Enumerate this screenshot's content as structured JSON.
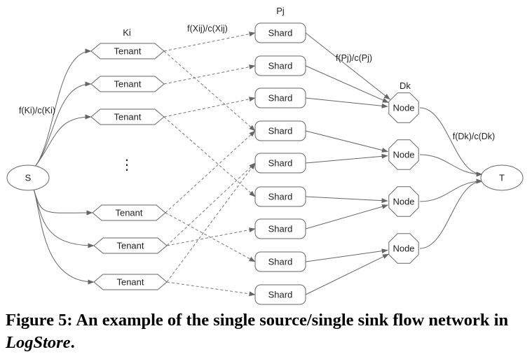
{
  "diagram": {
    "source_label": "S",
    "sink_label": "T",
    "tenant_label": "Tenant",
    "shard_label": "Shard",
    "node_label": "Node",
    "ellipsis": "⋮",
    "col_label_tenants": "Ki",
    "col_label_shards": "Pj",
    "col_label_nodes": "Dk",
    "edge_label_source": "f(Ki)/c(Ki)",
    "edge_label_tenant_shard": "f(Xij)/c(Xij)",
    "edge_label_shard_node": "f(Pj)/c(Pj)",
    "edge_label_node_sink": "f(Dk)/c(Dk)"
  },
  "caption": {
    "prefix": "Figure 5: An example of the single source/single sink flow network in ",
    "emphasis": "LogStore",
    "suffix": "."
  }
}
